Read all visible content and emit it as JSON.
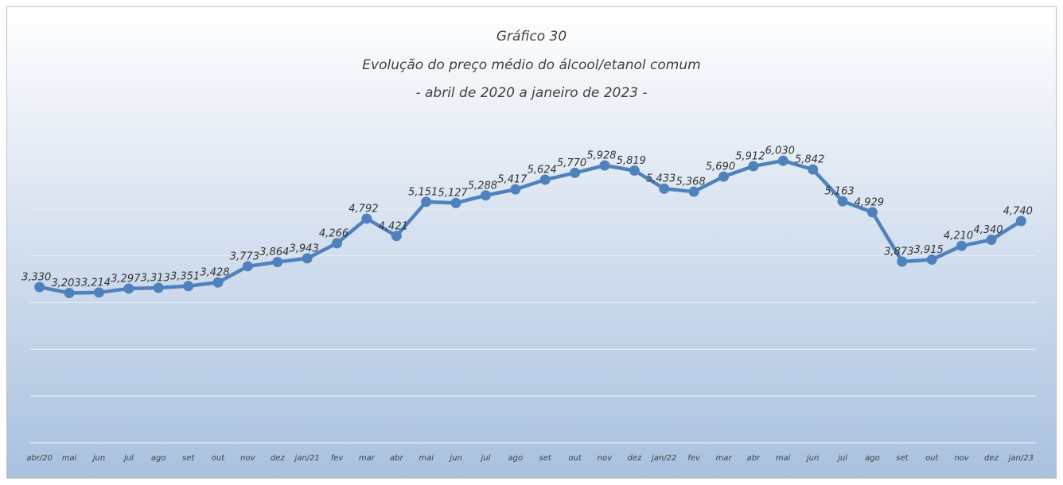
{
  "chart_data": {
    "type": "line",
    "title": "Gráfico 30",
    "subtitle": [
      "Evolução do preço médio do álcool/etanol comum",
      "- abril de 2020 a janeiro de 2023 -"
    ],
    "categories": [
      "abr/20",
      "mai",
      "jun",
      "jul",
      "ago",
      "set",
      "out",
      "nov",
      "dez",
      "jan/21",
      "fev",
      "mar",
      "abr",
      "mai",
      "jun",
      "jul",
      "ago",
      "set",
      "out",
      "nov",
      "dez",
      "jan/22",
      "fev",
      "mar",
      "abr",
      "mai",
      "jun",
      "jul",
      "ago",
      "set",
      "out",
      "nov",
      "dez",
      "jan/23"
    ],
    "series": [
      {
        "name": "Preço médio",
        "color": "#4f81bd",
        "values": [
          3.33,
          3.203,
          3.214,
          3.297,
          3.313,
          3.351,
          3.428,
          3.773,
          3.864,
          3.943,
          4.266,
          4.792,
          4.421,
          5.151,
          5.127,
          5.288,
          5.417,
          5.624,
          5.77,
          5.928,
          5.819,
          5.433,
          5.368,
          5.69,
          5.912,
          6.03,
          5.842,
          5.163,
          4.929,
          3.873,
          3.915,
          4.21,
          4.34,
          4.74
        ],
        "value_labels": [
          "3,330",
          "3,203",
          "3,214",
          "3,297",
          "3,313",
          "3,351",
          "3,428",
          "3,773",
          "3,864",
          "3,943",
          "4,266",
          "4,792",
          "4,421",
          "5,151",
          "5,127",
          "5,288",
          "5,417",
          "5,624",
          "5,770",
          "5,928",
          "5,819",
          "5,433",
          "5,368",
          "5,690",
          "5,912",
          "6,030",
          "5,842",
          "5,163",
          "4,929",
          "3,873",
          "3,915",
          "4,210",
          "4,340",
          "4,740"
        ]
      }
    ],
    "ylim": [
      0,
      7
    ],
    "yticks": [
      0,
      1,
      2,
      3,
      4,
      5,
      6,
      7
    ],
    "grid": true
  }
}
